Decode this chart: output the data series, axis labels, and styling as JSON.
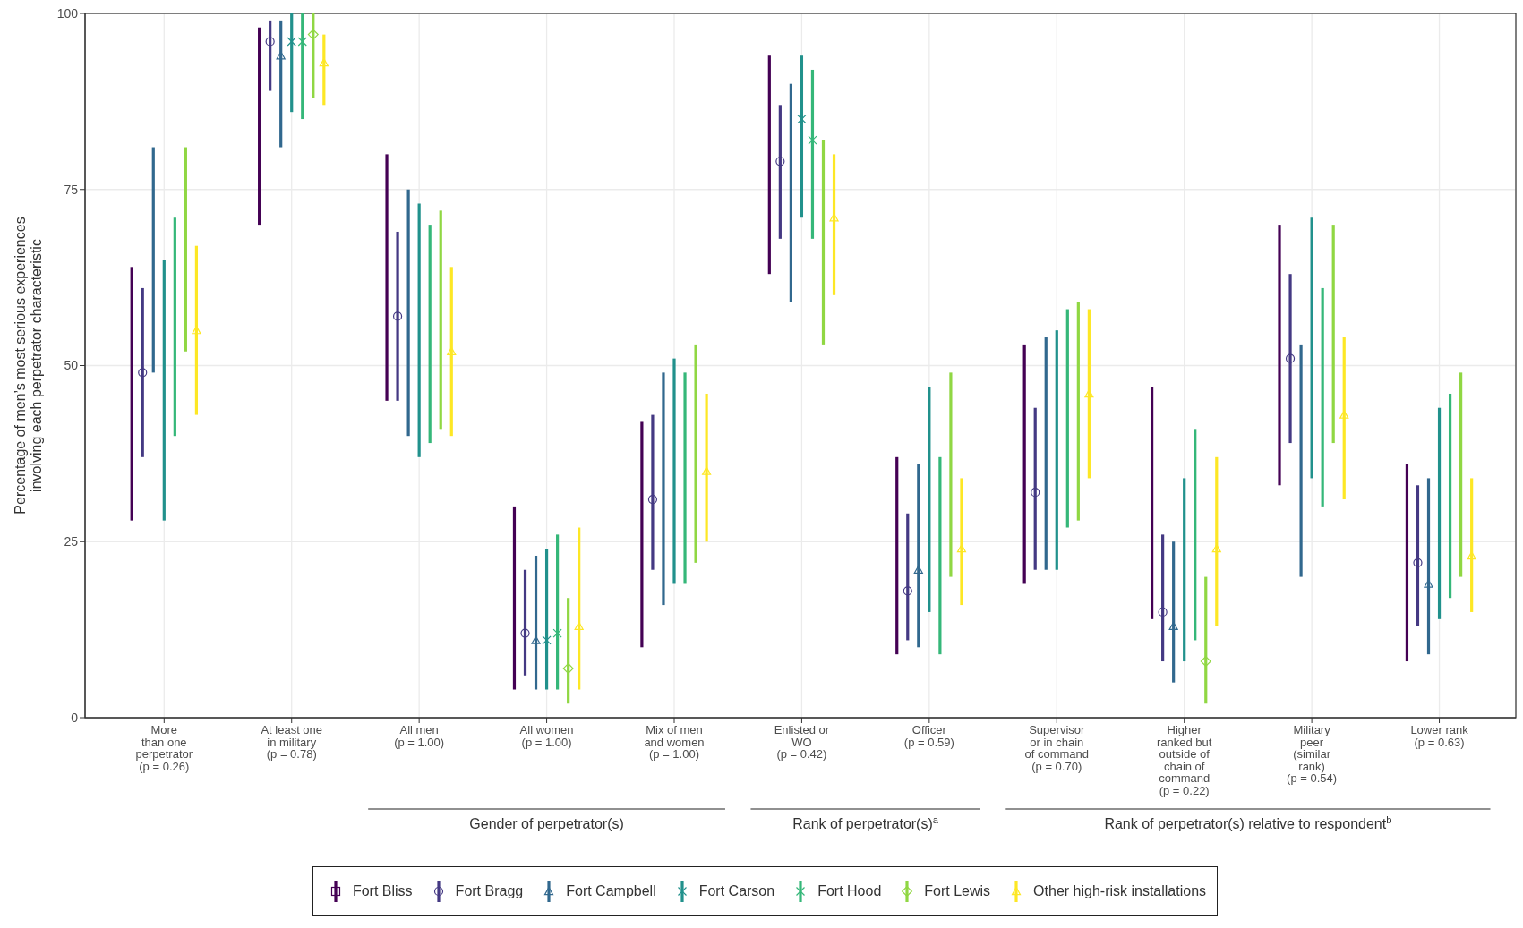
{
  "chart_data": {
    "type": "bar",
    "ylabel": "Percentage of men’s most serious experiences\ninvolving each perpetrator characteristic",
    "categories": [
      "More\nthan one\nperpetrator\n(p = 0.26)",
      "At least one\nin military\n(p = 0.78)",
      "All men\n(p = 1.00)",
      "All women\n(p = 1.00)",
      "Mix of men\nand women\n(p = 1.00)",
      "Enlisted or\nWO\n(p = 0.42)",
      "Officer\n(p = 0.59)",
      "Supervisor\nor in chain\nof command\n(p = 0.70)",
      "Higher\nranked but\noutside of\nchain of\ncommand\n(p = 0.22)",
      "Military\npeer\n(similar\nrank)\n(p = 0.54)",
      "Lower rank\n(p = 0.63)"
    ],
    "annotations": [
      "Gender of perpetrator(s)",
      "Rank of perpetrator(s)$^{a}$",
      "Rank of perpetrator(s) relative to respondent$^{b}$"
    ],
    "series": [
      {
        "name": "Fort Bliss",
        "color": "#440154",
        "marker": "square",
        "base": [
          28,
          70,
          45,
          4,
          10,
          63,
          9,
          19,
          14,
          33,
          8
        ],
        "values": [
          36,
          28,
          35,
          26,
          32,
          31,
          28,
          34,
          33,
          37,
          28
        ]
      },
      {
        "name": "Fort Bragg",
        "color": "#443983",
        "marker": "circle",
        "base": [
          37,
          89,
          45,
          6,
          21,
          68,
          11,
          21,
          8,
          39,
          13
        ],
        "values": [
          24,
          10,
          24,
          15,
          22,
          19,
          18,
          23,
          18,
          24,
          20
        ]
      },
      {
        "name": "Fort Campbell",
        "color": "#31688e",
        "marker": "triangle",
        "base": [
          49,
          81,
          40,
          4,
          16,
          59,
          10,
          21,
          5,
          20,
          9
        ],
        "values": [
          32,
          18,
          35,
          19,
          33,
          31,
          26,
          33,
          20,
          33,
          25
        ]
      },
      {
        "name": "Fort Carson",
        "color": "#21918c",
        "marker": "cross",
        "base": [
          28,
          86,
          37,
          4,
          19,
          71,
          15,
          21,
          8,
          34,
          14
        ],
        "values": [
          37,
          14,
          36,
          20,
          32,
          23,
          32,
          34,
          26,
          37,
          30
        ]
      },
      {
        "name": "Fort Hood",
        "color": "#35b779",
        "marker": "cross",
        "base": [
          40,
          85,
          39,
          4,
          19,
          68,
          9,
          27,
          11,
          30,
          17
        ],
        "values": [
          31,
          15,
          31,
          22,
          30,
          24,
          28,
          31,
          30,
          31,
          29
        ]
      },
      {
        "name": "Fort Lewis",
        "color": "#90d743",
        "marker": "diamond",
        "base": [
          52,
          88,
          41,
          2,
          22,
          53,
          20,
          28,
          2,
          39,
          20
        ],
        "values": [
          29,
          12,
          31,
          15,
          31,
          29,
          29,
          31,
          18,
          31,
          29
        ]
      },
      {
        "name": "Other high-risk installations",
        "color": "#fde725",
        "marker": "triangle",
        "base": [
          43,
          87,
          40,
          4,
          25,
          60,
          16,
          34,
          13,
          31,
          15
        ],
        "values": [
          24,
          10,
          24,
          23,
          21,
          20,
          18,
          24,
          24,
          23,
          19
        ]
      },
      {
        "type": "scatter",
        "color": "#443983",
        "marker": "circle",
        "values": [
          49,
          96,
          57,
          12,
          31,
          79,
          18,
          32,
          15,
          51,
          22
        ]
      },
      {
        "type": "scatter",
        "color": "#31688e",
        "marker": "triangle",
        "values": [
          null,
          94,
          null,
          11,
          null,
          null,
          21,
          null,
          13,
          null,
          19
        ]
      },
      {
        "type": "scatter",
        "color": "#21918c",
        "marker": "cross",
        "values": [
          null,
          96,
          null,
          11,
          null,
          85,
          null,
          null,
          null,
          null,
          null
        ]
      },
      {
        "type": "scatter",
        "color": "#35b779",
        "marker": "cross",
        "values": [
          null,
          96,
          null,
          12,
          null,
          82,
          null,
          null,
          null,
          null,
          null
        ]
      },
      {
        "type": "scatter",
        "color": "#90d743",
        "marker": "diamond",
        "values": [
          null,
          97,
          null,
          7,
          null,
          null,
          null,
          null,
          8,
          null,
          null
        ]
      },
      {
        "type": "scatter",
        "color": "#fde725",
        "marker": "triangle",
        "values": [
          55,
          93,
          52,
          13,
          35,
          71,
          24,
          46,
          24,
          43,
          23
        ]
      }
    ],
    "ylim": [
      0,
      100
    ],
    "yticks": [
      0,
      25,
      50,
      75,
      100
    ],
    "grid": true,
    "legend": "bottom"
  }
}
